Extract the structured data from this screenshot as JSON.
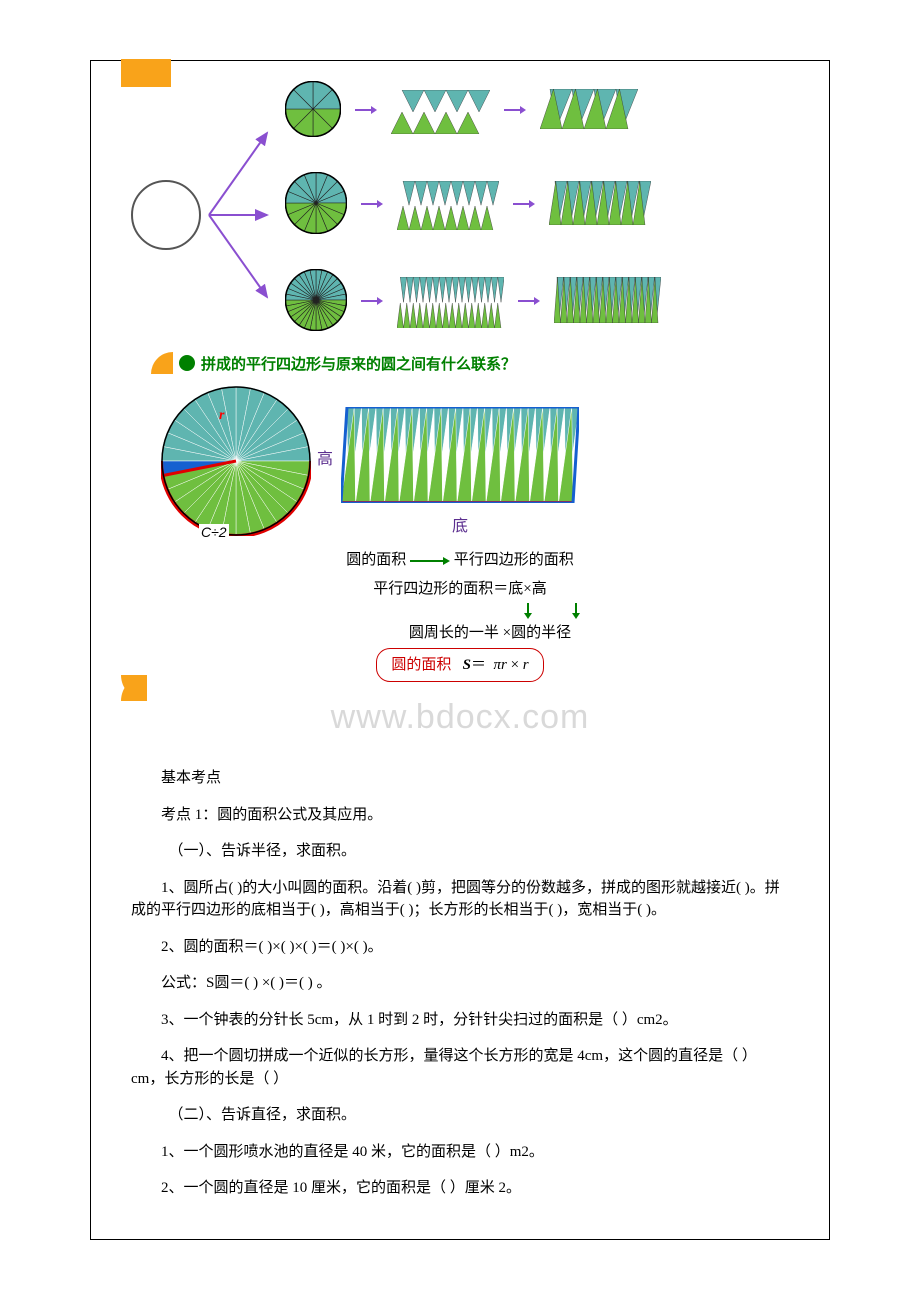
{
  "colors": {
    "teal": "#5fb5b0",
    "green": "#6fbf3f",
    "darkgreen": "#008000",
    "purple": "#8a4fd0",
    "red": "#e00000",
    "orange": "#f9a31a",
    "blue": "#1560d0",
    "textpurple": "#5b2e8f",
    "watermark": "#d9d9d9"
  },
  "bullet_question": "拼成的平行四边形与原来的圆之间有什么联系？",
  "labels": {
    "c_div_2": "C÷2",
    "r": "r",
    "gao": "高",
    "di": "底"
  },
  "formula_lines": {
    "l1_left": "圆的面积",
    "l1_right": "平行四边形的面积",
    "l2": "平行四边形的面积＝底×高",
    "l3": "圆周长的一半 ×圆的半径",
    "pill_label": "圆的面积",
    "pill_expr_s": "S",
    "pill_expr_eq": "＝",
    "pill_expr_pi": "πr",
    "pill_expr_x": "×",
    "pill_expr_r": "r"
  },
  "watermark": "www.bdocx.com",
  "text": {
    "h1": "基本考点",
    "h2": "考点 1：圆的面积公式及其应用。",
    "s1": "（一）、告诉半径，求面积。",
    "p1": "1、圆所占( )的大小叫圆的面积。沿着( )剪，把圆等分的份数越多，拼成的图形就越接近( )。拼成的平行四边形的底相当于( )，高相当于( )；长方形的长相当于( )，宽相当于( )。",
    "p2": "2、圆的面积＝( )×( )×( )＝( )×( )。",
    "p2b": "公式：S圆＝( ) ×( )＝( ) 。",
    "p3": "3、一个钟表的分针长 5cm，从 1 时到 2 时，分针针尖扫过的面积是（  ）cm2。",
    "p4": "4、把一个圆切拼成一个近似的长方形，量得这个长方形的宽是 4cm，这个圆的直径是（  ）cm，长方形的长是（  ）",
    "s2": "（二）、告诉直径，求面积。",
    "p5": "1、一个圆形喷水池的直径是 40 米，它的面积是（  ）m2。",
    "p6": "2、一个圆的直径是 10 厘米，它的面积是（  ）厘米 2。"
  },
  "diagrams": {
    "row1": {
      "pie_slices": 8,
      "pie_size": 56,
      "tri_pairs": 4,
      "tri_w": 22,
      "tri_h": 40,
      "rect_skew": 10
    },
    "row2": {
      "pie_slices": 16,
      "pie_size": 62,
      "tri_pairs": 8,
      "tri_w": 12,
      "tri_h": 44,
      "rect_skew": 6
    },
    "row3": {
      "pie_slices": 32,
      "pie_size": 62,
      "tri_pairs": 16,
      "tri_w": 6.5,
      "tri_h": 46,
      "rect_skew": 3
    },
    "big_pie": {
      "slices": 32,
      "size": 150
    },
    "big_paral": {
      "tri_pairs": 16,
      "tri_w": 14.5,
      "tri_h": 96,
      "skew": 6
    }
  }
}
